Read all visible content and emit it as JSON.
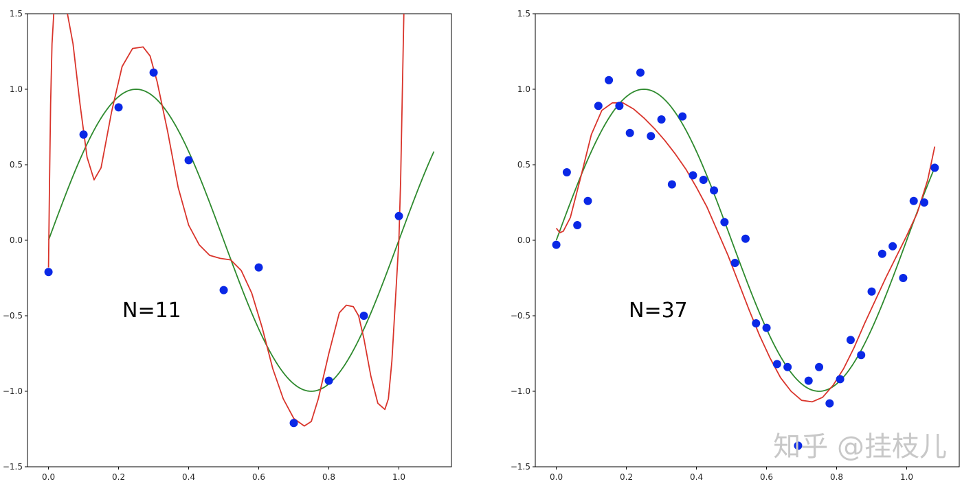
{
  "watermark": "知乎 @挂枝儿",
  "colors": {
    "points": "#0a28e6",
    "fit": "#d9342b",
    "truth": "#2e8a2e"
  },
  "chart_data": [
    {
      "type": "scatter",
      "annotation": "N=11",
      "xlim": [
        -0.06,
        1.15
      ],
      "ylim": [
        -1.5,
        1.5
      ],
      "xticks": [
        0.0,
        0.2,
        0.4,
        0.6,
        0.8,
        1.0
      ],
      "xtick_labels": [
        "0.0",
        "0.2",
        "0.4",
        "0.6",
        "0.8",
        "1.0"
      ],
      "yticks": [
        -1.5,
        -1.0,
        -0.5,
        0.0,
        0.5,
        1.0,
        1.5
      ],
      "ytick_labels": [
        "−1.5",
        "−1.0",
        "−0.5",
        "0.0",
        "0.5",
        "1.0",
        "1.5"
      ],
      "points": {
        "x": [
          0.0,
          0.1,
          0.2,
          0.3,
          0.4,
          0.5,
          0.6,
          0.7,
          0.8,
          0.9,
          1.0
        ],
        "y": [
          -0.21,
          0.7,
          0.88,
          1.11,
          0.53,
          -0.33,
          -0.18,
          -1.21,
          -0.93,
          -0.5,
          0.16
        ]
      },
      "true_curve": {
        "function": "sin(2πx)",
        "x_range": [
          0.0,
          1.1
        ]
      },
      "fit_curve": {
        "x": [
          0.0,
          0.003,
          0.006,
          0.01,
          0.015,
          0.02,
          0.03,
          0.05,
          0.07,
          0.09,
          0.11,
          0.13,
          0.15,
          0.18,
          0.21,
          0.24,
          0.27,
          0.29,
          0.31,
          0.34,
          0.37,
          0.4,
          0.43,
          0.46,
          0.49,
          0.52,
          0.55,
          0.58,
          0.61,
          0.64,
          0.67,
          0.7,
          0.73,
          0.75,
          0.77,
          0.8,
          0.83,
          0.85,
          0.87,
          0.885,
          0.9,
          0.92,
          0.94,
          0.96,
          0.97,
          0.98,
          0.99,
          1.0,
          1.005,
          1.01,
          1.015
        ],
        "y": [
          -0.18,
          0.4,
          0.9,
          1.3,
          1.5,
          1.58,
          1.63,
          1.55,
          1.3,
          0.9,
          0.55,
          0.4,
          0.48,
          0.85,
          1.15,
          1.27,
          1.28,
          1.22,
          1.05,
          0.72,
          0.35,
          0.1,
          -0.03,
          -0.1,
          -0.12,
          -0.13,
          -0.2,
          -0.35,
          -0.58,
          -0.85,
          -1.05,
          -1.18,
          -1.23,
          -1.2,
          -1.05,
          -0.75,
          -0.48,
          -0.43,
          -0.44,
          -0.5,
          -0.65,
          -0.9,
          -1.08,
          -1.12,
          -1.05,
          -0.8,
          -0.4,
          0.0,
          0.4,
          1.0,
          1.6
        ]
      }
    },
    {
      "type": "scatter",
      "annotation": "N=37",
      "xlim": [
        -0.06,
        1.15
      ],
      "ylim": [
        -1.5,
        1.5
      ],
      "xticks": [
        0.0,
        0.2,
        0.4,
        0.6,
        0.8,
        1.0
      ],
      "xtick_labels": [
        "0.0",
        "0.2",
        "0.4",
        "0.6",
        "0.8",
        "1.0"
      ],
      "yticks": [
        -1.5,
        -1.0,
        -0.5,
        0.0,
        0.5,
        1.0,
        1.5
      ],
      "ytick_labels": [
        "−1.5",
        "−1.0",
        "−0.5",
        "0.0",
        "0.5",
        "1.0",
        "1.5"
      ],
      "points": {
        "x": [
          0.0,
          0.03,
          0.06,
          0.09,
          0.12,
          0.15,
          0.18,
          0.21,
          0.24,
          0.27,
          0.3,
          0.33,
          0.36,
          0.39,
          0.42,
          0.45,
          0.48,
          0.51,
          0.54,
          0.57,
          0.6,
          0.63,
          0.66,
          0.69,
          0.72,
          0.75,
          0.78,
          0.81,
          0.84,
          0.87,
          0.9,
          0.93,
          0.96,
          0.99,
          1.02,
          1.05,
          1.08
        ],
        "y": [
          -0.03,
          0.45,
          0.1,
          0.26,
          0.89,
          1.06,
          0.89,
          0.71,
          1.11,
          0.69,
          0.8,
          0.37,
          0.82,
          0.43,
          0.4,
          0.33,
          0.12,
          -0.15,
          0.01,
          -0.55,
          -0.58,
          -0.82,
          -0.84,
          -1.36,
          -0.93,
          -0.84,
          -1.08,
          -0.92,
          -0.66,
          -0.76,
          -0.34,
          -0.09,
          -0.04,
          -0.25,
          0.26,
          0.25,
          0.48
        ]
      },
      "true_curve": {
        "function": "sin(2πx)",
        "x_range": [
          0.0,
          1.08
        ]
      },
      "fit_curve": {
        "x": [
          0.0,
          0.01,
          0.02,
          0.04,
          0.07,
          0.1,
          0.13,
          0.16,
          0.19,
          0.22,
          0.25,
          0.28,
          0.31,
          0.34,
          0.37,
          0.4,
          0.43,
          0.46,
          0.49,
          0.52,
          0.55,
          0.58,
          0.61,
          0.64,
          0.67,
          0.7,
          0.73,
          0.76,
          0.79,
          0.82,
          0.85,
          0.88,
          0.91,
          0.94,
          0.97,
          1.0,
          1.03,
          1.06,
          1.08
        ],
        "y": [
          0.08,
          0.05,
          0.06,
          0.15,
          0.42,
          0.7,
          0.86,
          0.91,
          0.91,
          0.87,
          0.81,
          0.74,
          0.66,
          0.57,
          0.47,
          0.35,
          0.22,
          0.06,
          -0.1,
          -0.28,
          -0.46,
          -0.63,
          -0.78,
          -0.91,
          -1.0,
          -1.06,
          -1.07,
          -1.04,
          -0.96,
          -0.85,
          -0.71,
          -0.55,
          -0.4,
          -0.25,
          -0.11,
          0.03,
          0.18,
          0.4,
          0.62
        ]
      }
    }
  ]
}
